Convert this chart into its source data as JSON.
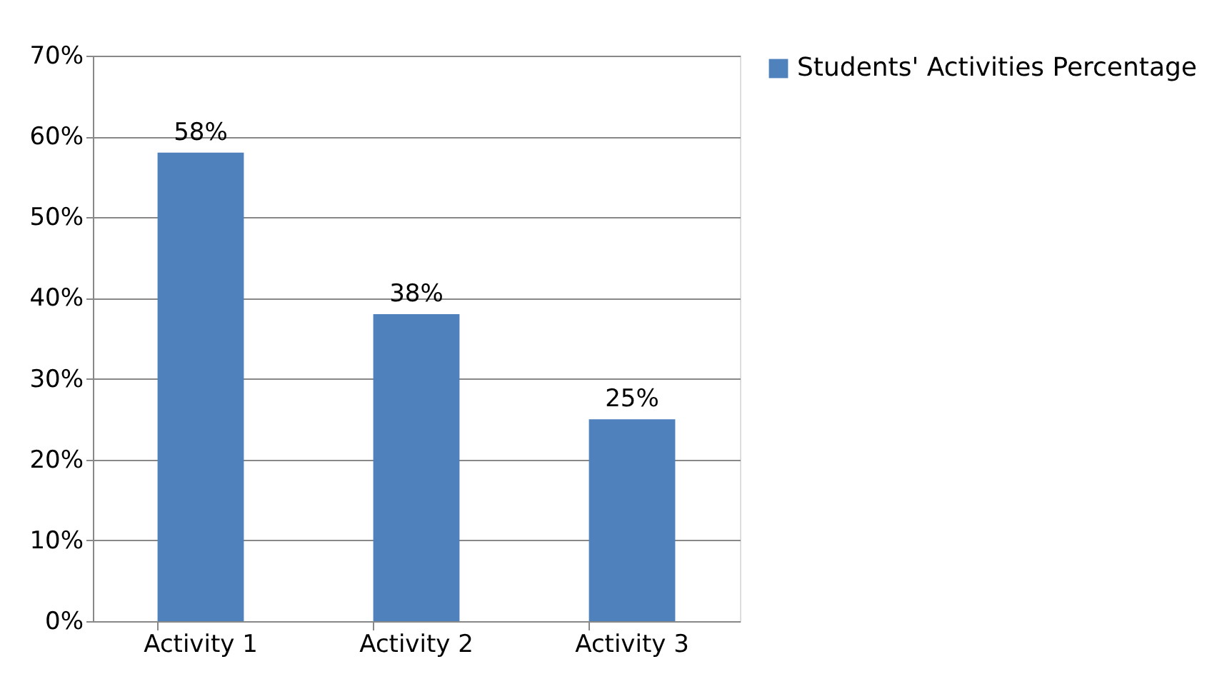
{
  "chart_data": {
    "type": "bar",
    "categories": [
      "Activity 1",
      "Activity 2",
      "Activity 3"
    ],
    "series": [
      {
        "name": "Students' Activities Percentage",
        "color": "#4f81bd",
        "values": [
          58,
          38,
          25
        ],
        "value_labels": [
          "58%",
          "38%",
          "25%"
        ]
      }
    ],
    "ylim": [
      0,
      70
    ],
    "yticks": [
      {
        "value": 0,
        "label": "0%"
      },
      {
        "value": 10,
        "label": "10%"
      },
      {
        "value": 20,
        "label": "20%"
      },
      {
        "value": 30,
        "label": "30%"
      },
      {
        "value": 40,
        "label": "40%"
      },
      {
        "value": 50,
        "label": "50%"
      },
      {
        "value": 60,
        "label": "60%"
      },
      {
        "value": 70,
        "label": "70%"
      }
    ],
    "grid": "y",
    "legend": "right"
  }
}
